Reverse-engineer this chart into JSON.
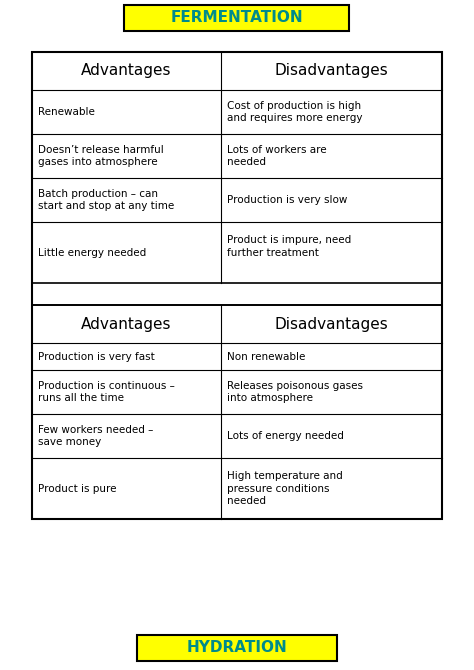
{
  "title1": "FERMENTATION",
  "title2": "HYDRATION",
  "title_bg": "#FFFF00",
  "title_text_color": "#008B8B",
  "header_font_size": 11,
  "cell_font_size": 7.5,
  "table_bg": "#FFFFFF",
  "border_color": "#000000",
  "fermentation_rows": [
    [
      "Advantages",
      "Disadvantages"
    ],
    [
      "Renewable",
      "Cost of production is high\nand requires more energy"
    ],
    [
      "Doesn’t release harmful\ngases into atmosphere",
      "Lots of workers are\nneeded"
    ],
    [
      "Batch production – can\nstart and stop at any time",
      "Production is very slow"
    ],
    [
      "Little energy needed",
      "Product is impure, need\nfurther treatment\n "
    ]
  ],
  "hydration_rows": [
    [
      "Advantages",
      "Disadvantages"
    ],
    [
      "Production is very fast",
      "Non renewable"
    ],
    [
      "Production is continuous –\nruns all the time",
      "Releases poisonous gases\ninto atmosphere"
    ],
    [
      "Few workers needed –\nsave money",
      "Lots of energy needed"
    ],
    [
      "Product is pure",
      "High temperature and\npressure conditions\nneeded"
    ]
  ],
  "figsize": [
    4.74,
    6.7
  ],
  "dpi": 100,
  "col_split": 0.46
}
